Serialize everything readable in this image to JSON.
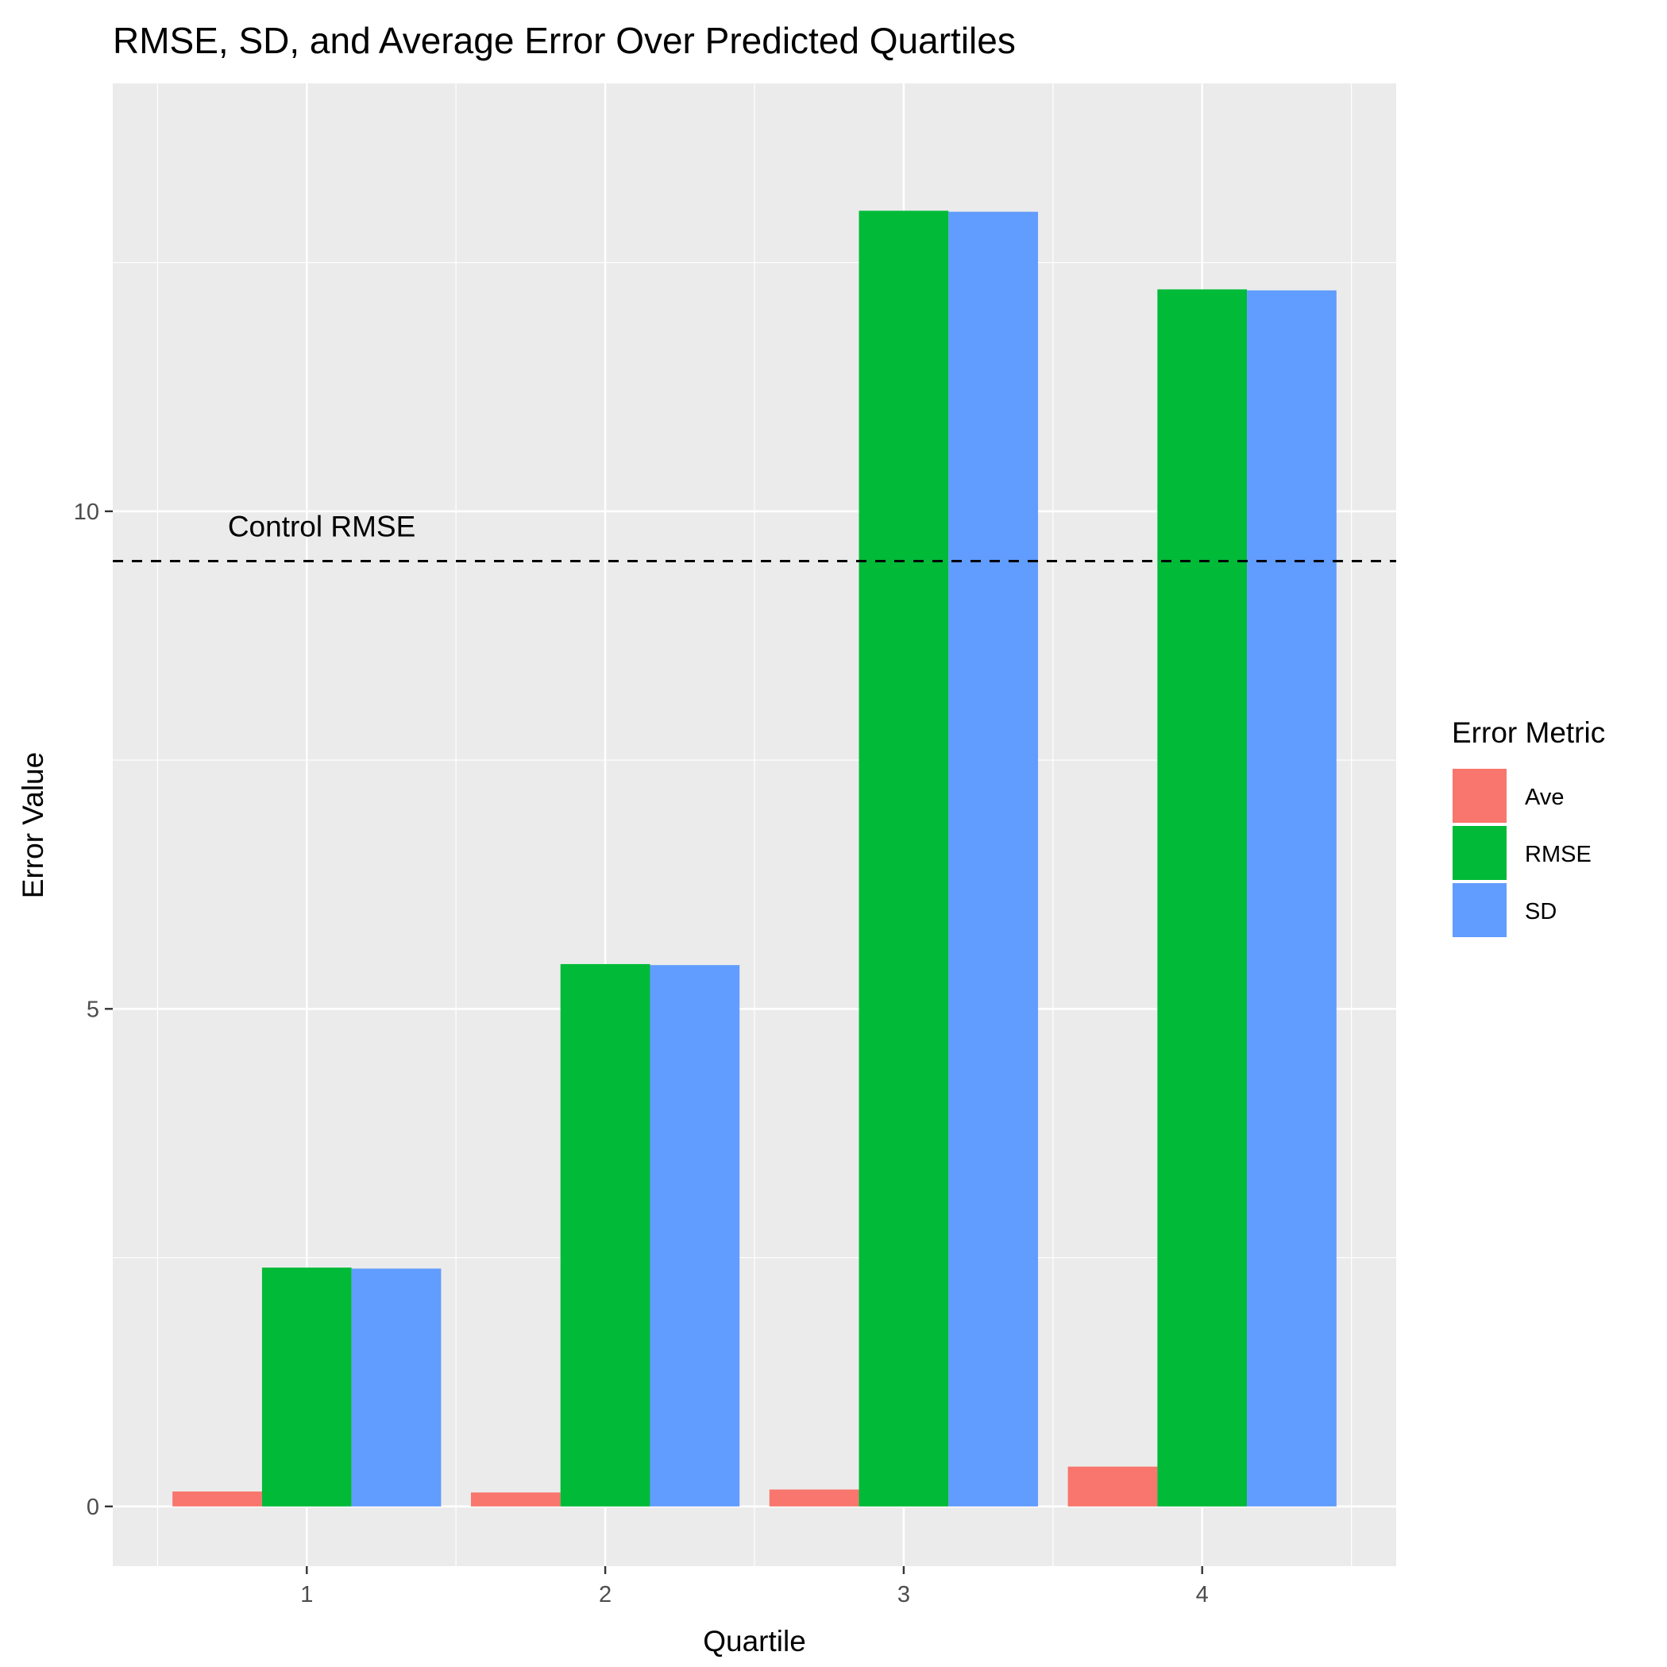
{
  "chart_data": {
    "type": "bar",
    "title": "RMSE, SD, and Average Error Over Predicted Quartiles",
    "xlabel": "Quartile",
    "ylabel": "Error Value",
    "categories": [
      "1",
      "2",
      "3",
      "4"
    ],
    "series": [
      {
        "name": "Ave",
        "color": "#F8766D",
        "values": [
          0.15,
          0.14,
          0.17,
          0.4
        ]
      },
      {
        "name": "RMSE",
        "color": "#00BA38",
        "values": [
          2.4,
          5.45,
          13.02,
          12.23
        ]
      },
      {
        "name": "SD",
        "color": "#619CFF",
        "values": [
          2.39,
          5.44,
          13.01,
          12.22
        ]
      }
    ],
    "reference_line": {
      "label": "Control RMSE",
      "value": 9.5,
      "style": "dashed",
      "color": "#000000"
    },
    "ylim": [
      -0.6,
      14.3
    ],
    "yticks": [
      0,
      5,
      10
    ],
    "grid": true,
    "legend": {
      "title": "Error Metric",
      "position": "right"
    },
    "background": "#EBEBEB",
    "gridline_color": "#FFFFFF"
  }
}
